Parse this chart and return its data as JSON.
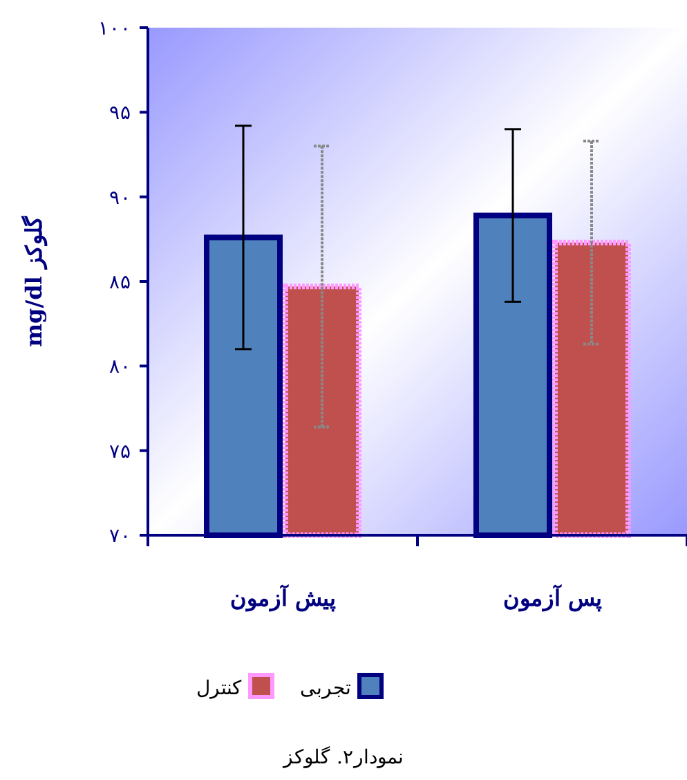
{
  "chart_data": {
    "type": "bar",
    "categories": [
      "پیش آزمون",
      "پس آزمون"
    ],
    "ylabel": "mg/dl گلوکز",
    "series": [
      {
        "name": "تجربی",
        "color": "#4f81bd",
        "values": [
          87.6,
          88.9
        ],
        "errors": [
          6.6,
          5.1
        ]
      },
      {
        "name": "کنترل",
        "color": "#c0504d",
        "values": [
          84.7,
          87.3
        ],
        "errors": [
          8.3,
          6.0
        ]
      }
    ],
    "ylim": [
      70,
      100
    ],
    "yticks": [
      {
        "value": 70,
        "label": "۷۰"
      },
      {
        "value": 75,
        "label": "۷۵"
      },
      {
        "value": 80,
        "label": "۸۰"
      },
      {
        "value": 85,
        "label": "۸۵"
      },
      {
        "value": 90,
        "label": "۹۰"
      },
      {
        "value": 95,
        "label": "۹۵"
      },
      {
        "value": 100,
        "label": "۱۰۰"
      }
    ],
    "grid": false,
    "legend": "bottom",
    "annotations": [
      "نمودار۲. گلوکز"
    ]
  }
}
